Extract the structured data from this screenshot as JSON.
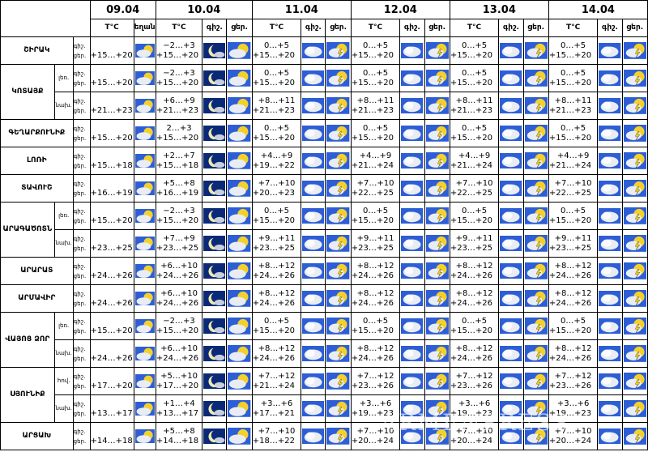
{
  "header": {
    "dates": [
      "09.04",
      "10.04",
      "11.04",
      "12.04",
      "13.04",
      "14.04"
    ],
    "temp_label": "T°C",
    "weather_label": "եղանակը",
    "day_short": "ցեր.",
    "night_short": "գիշ."
  },
  "rows": [
    {
      "region": "ՇԻՐԱԿ",
      "sub": "",
      "night": "գիշ.",
      "day": "ցեր.",
      "t": [
        "+15…+20",
        "−2…+3",
        "+15…+20",
        "0…+5",
        "+15…+20",
        "0…+5",
        "+15…+20",
        "0…+5",
        "+15…+20",
        "0…+5",
        "+15…+20"
      ]
    },
    {
      "region": "ԿՈՏԱՅՔ",
      "sub": "լեռ.",
      "night": "գիշ.",
      "day": "ցեր.",
      "t": [
        "+15…+20",
        "−2…+3",
        "+15…+20",
        "0…+5",
        "+15…+20",
        "0…+5",
        "+15…+20",
        "0…+5",
        "+15…+20",
        "0…+5",
        "+15…+20"
      ]
    },
    {
      "region": "",
      "sub": "նախ.",
      "night": "գիշ.",
      "day": "ցեր.",
      "t": [
        "+21…+23",
        "+6…+9",
        "+21…+23",
        "+8…+11",
        "+21…+23",
        "+8…+11",
        "+21…+23",
        "+8…+11",
        "+21…+23",
        "+8…+11",
        "+21…+23"
      ]
    },
    {
      "region": "ԳԵՂԱՐՔՈՒՆԻՔ",
      "sub": "",
      "night": "գիշ.",
      "day": "ցեր.",
      "t": [
        "+15…+20",
        "2…+3",
        "+15…+20",
        "0…+5",
        "+15…+20",
        "0…+5",
        "+15…+20",
        "0…+5",
        "+15…+20",
        "0…+5",
        "+15…+20"
      ]
    },
    {
      "region": "ԼՈՌԻ",
      "sub": "",
      "night": "գիշ.",
      "day": "ցեր.",
      "t": [
        "+15…+18",
        "+2…+7",
        "+15…+18",
        "+4…+9",
        "+19…+22",
        "+4…+9",
        "+21…+24",
        "+4…+9",
        "+21…+24",
        "+4…+9",
        "+21…+24"
      ]
    },
    {
      "region": "ՏԱՎՈՒՇ",
      "sub": "",
      "night": "գիշ.",
      "day": "ցեր.",
      "t": [
        "+16…+19",
        "+5…+8",
        "+16…+19",
        "+7…+10",
        "+20…+23",
        "+7…+10",
        "+22…+25",
        "+7…+10",
        "+22…+25",
        "+7…+10",
        "+22…+25"
      ]
    },
    {
      "region": "ԱՐԱԳԱԾՈՏՆ",
      "sub": "լեռ.",
      "night": "գիշ.",
      "day": "ցեր.",
      "t": [
        "+15…+20",
        "−2…+3",
        "+15…+20",
        "0…+5",
        "+15…+20",
        "0…+5",
        "+15…+20",
        "0…+5",
        "+15…+20",
        "0…+5",
        "+15…+20"
      ]
    },
    {
      "region": "",
      "sub": "նախ.",
      "night": "գիշ.",
      "day": "ցեր.",
      "t": [
        "+23…+25",
        "+7…+9",
        "+23…+25",
        "+9…+11",
        "+23…+25",
        "+9…+11",
        "+23…+25",
        "+9…+11",
        "+23…+25",
        "+9…+11",
        "+23…+25"
      ]
    },
    {
      "region": "ԱՐԱՐԱՏ",
      "sub": "",
      "night": "գիշ.",
      "day": "ցեր.",
      "t": [
        "+24…+26",
        "+6…+10",
        "+24…+26",
        "+8…+12",
        "+24…+26",
        "+8…+12",
        "+24…+26",
        "+8…+12",
        "+24…+26",
        "+8…+12",
        "+24…+26"
      ]
    },
    {
      "region": "ԱՐՄԱՎԻՐ",
      "sub": "",
      "night": "գիշ.",
      "day": "ցեր.",
      "t": [
        "+24…+26",
        "+6…+10",
        "+24…+26",
        "+8…+12",
        "+24…+26",
        "+8…+12",
        "+24…+26",
        "+8…+12",
        "+24…+26",
        "+8…+12",
        "+24…+26"
      ]
    },
    {
      "region": "ՎԱՅՈՑ ՁՈՐ",
      "sub": "լեռ.",
      "night": "գիշ.",
      "day": "ցեր.",
      "t": [
        "+15…+20",
        "−2…+3",
        "+15…+20",
        "0…+5",
        "+15…+20",
        "0…+5",
        "+15…+20",
        "0…+5",
        "+15…+20",
        "0…+5",
        "+15…+20"
      ]
    },
    {
      "region": "",
      "sub": "նախ.",
      "night": "գիշ.",
      "day": "ցեր.",
      "t": [
        "+24…+26",
        "+6…+10",
        "+24…+26",
        "+8…+12",
        "+24…+26",
        "+8…+12",
        "+24…+26",
        "+8…+12",
        "+24…+26",
        "+8…+12",
        "+24…+26"
      ]
    },
    {
      "region": "ՍՅՈՒՆԻՔ",
      "sub": "հով.",
      "night": "գիշ.",
      "day": "ցեր.",
      "t": [
        "+17…+20",
        "+5…+10",
        "+17…+20",
        "+7…+12",
        "+21…+24",
        "+7…+12",
        "+23…+26",
        "+7…+12",
        "+23…+26",
        "+7…+12",
        "+23…+26"
      ]
    },
    {
      "region": "",
      "sub": "նախ.",
      "night": "գիշ.",
      "day": "ցեր.",
      "t": [
        "+13…+17",
        "+1…+4",
        "+13…+17",
        "+3…+6",
        "+17…+21",
        "+3…+6",
        "+19…+23",
        "+3…+6",
        "+19…+23",
        "+3…+6",
        "+19…+23"
      ]
    },
    {
      "region": "ԱՐՑԱԽ",
      "sub": "",
      "night": "գիշ.",
      "day": "ցեր.",
      "t": [
        "+14…+18",
        "+5…+8",
        "+14…+18",
        "+7…+10",
        "+18…+22",
        "+7…+10",
        "+20…+24",
        "+7…+10",
        "+20…+24",
        "+7…+10",
        "+20…+24"
      ]
    }
  ],
  "watermark": "ARMENPRESS"
}
